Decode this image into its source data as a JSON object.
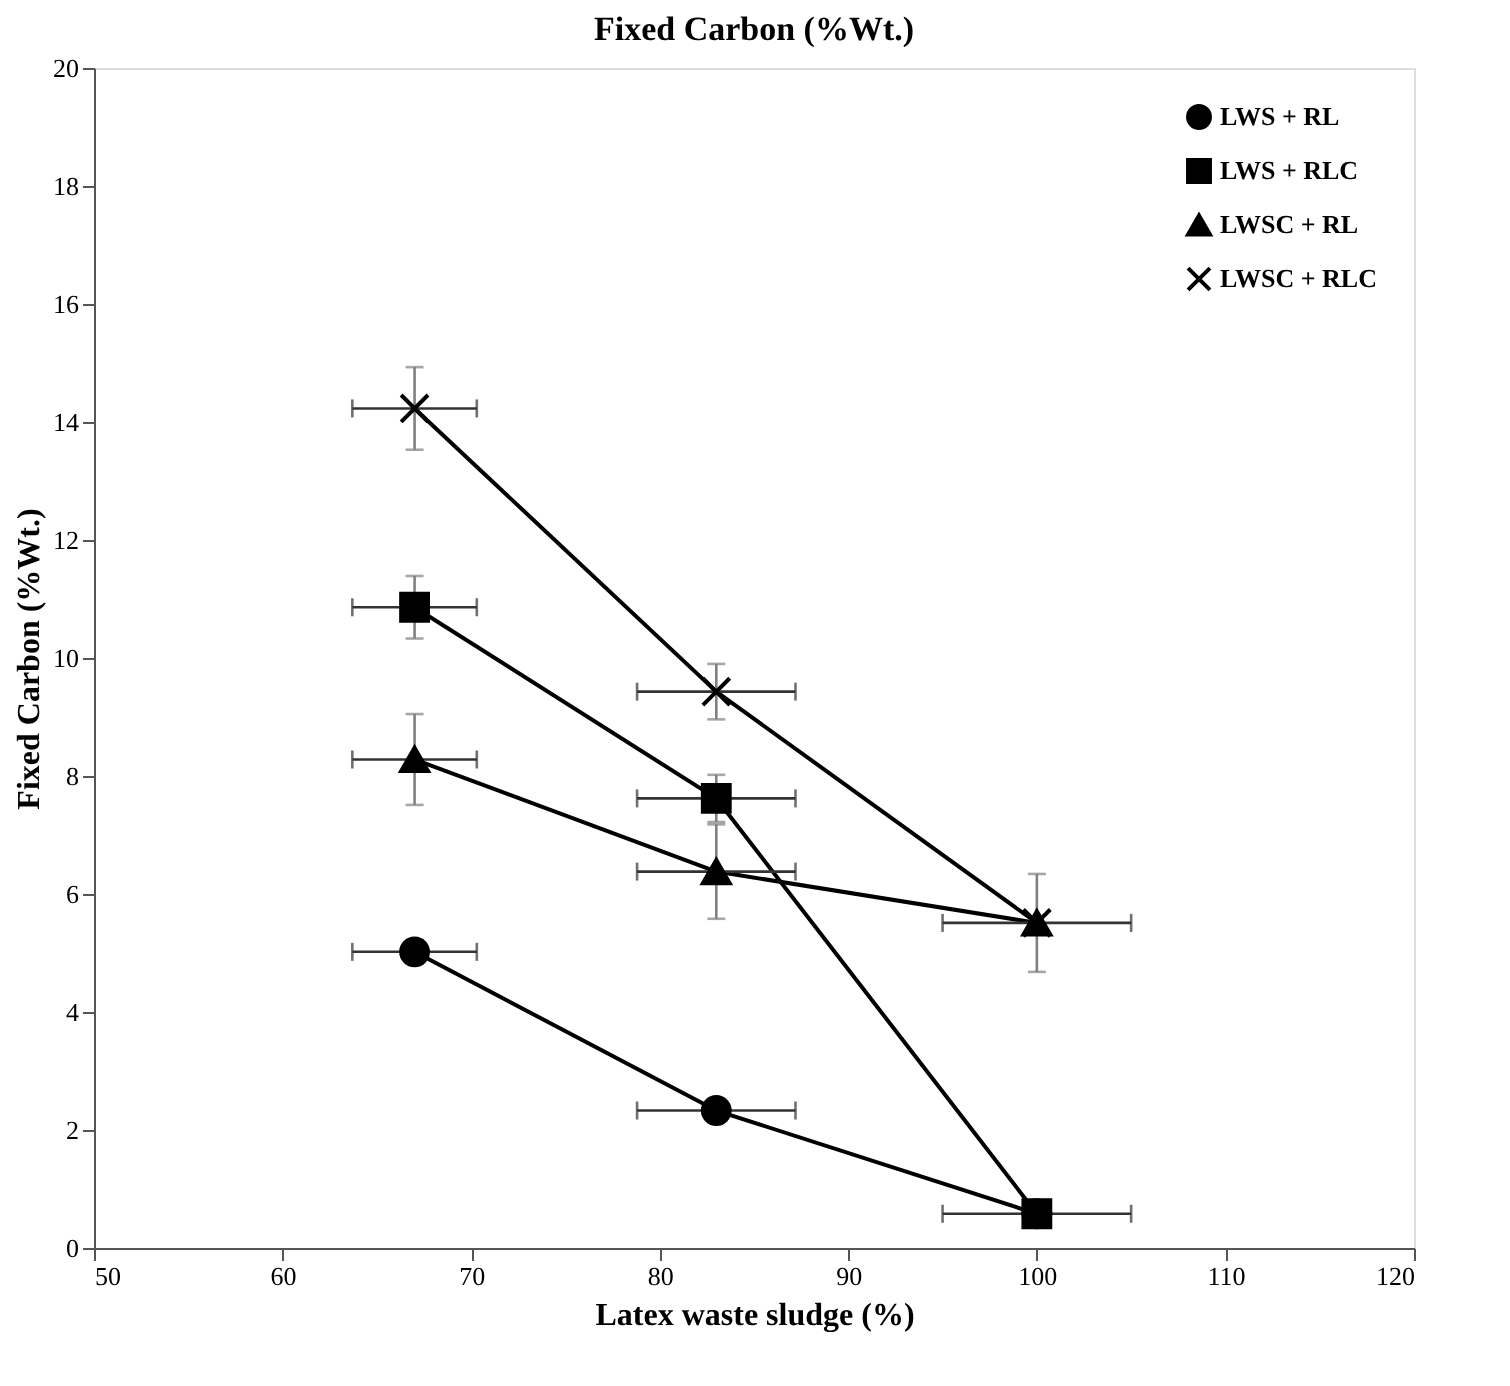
{
  "chart_data": {
    "type": "line",
    "title": "Fixed Carbon (%Wt.)",
    "xlabel": "Latex waste sludge (%)",
    "ylabel": "Fixed Carbon (%Wt.)",
    "x": [
      67,
      83,
      100
    ],
    "series": [
      {
        "name": "LWS + RL",
        "color": "#000000",
        "marker": "circle",
        "values": [
          5.02,
          2.33,
          0.58
        ],
        "errors": [
          0.2,
          null,
          null
        ],
        "xerrors": [
          3.3,
          4.2,
          null
        ]
      },
      {
        "name": "LWS + RLC",
        "color": "#000000",
        "marker": "square",
        "values": [
          10.86,
          7.62,
          0.58
        ],
        "errors": [
          0.53,
          0.4,
          null
        ],
        "xerrors": [
          3.3,
          4.2,
          5.0
        ]
      },
      {
        "name": "LWSC + RL",
        "color": "#000000",
        "marker": "triangle",
        "values": [
          8.28,
          6.38,
          5.51
        ],
        "errors": [
          0.77,
          0.8,
          0.83
        ],
        "xerrors": [
          3.3,
          4.2,
          5.0
        ]
      },
      {
        "name": "LWSC + RLC",
        "color": "#000000",
        "marker": "cross",
        "values": [
          14.23,
          9.43,
          5.51
        ],
        "errors": [
          0.7,
          0.47,
          null
        ],
        "xerrors": [
          3.3,
          4.2,
          null
        ]
      }
    ],
    "xlim": [
      50,
      120
    ],
    "xticks": [
      50,
      60,
      70,
      80,
      90,
      100,
      110,
      120
    ],
    "ylim": [
      0,
      20
    ],
    "yticks": [
      0,
      2,
      4,
      6,
      8,
      10,
      12,
      14,
      16,
      18,
      20
    ],
    "grid": false,
    "legend": "top right",
    "line_style": "solid"
  }
}
